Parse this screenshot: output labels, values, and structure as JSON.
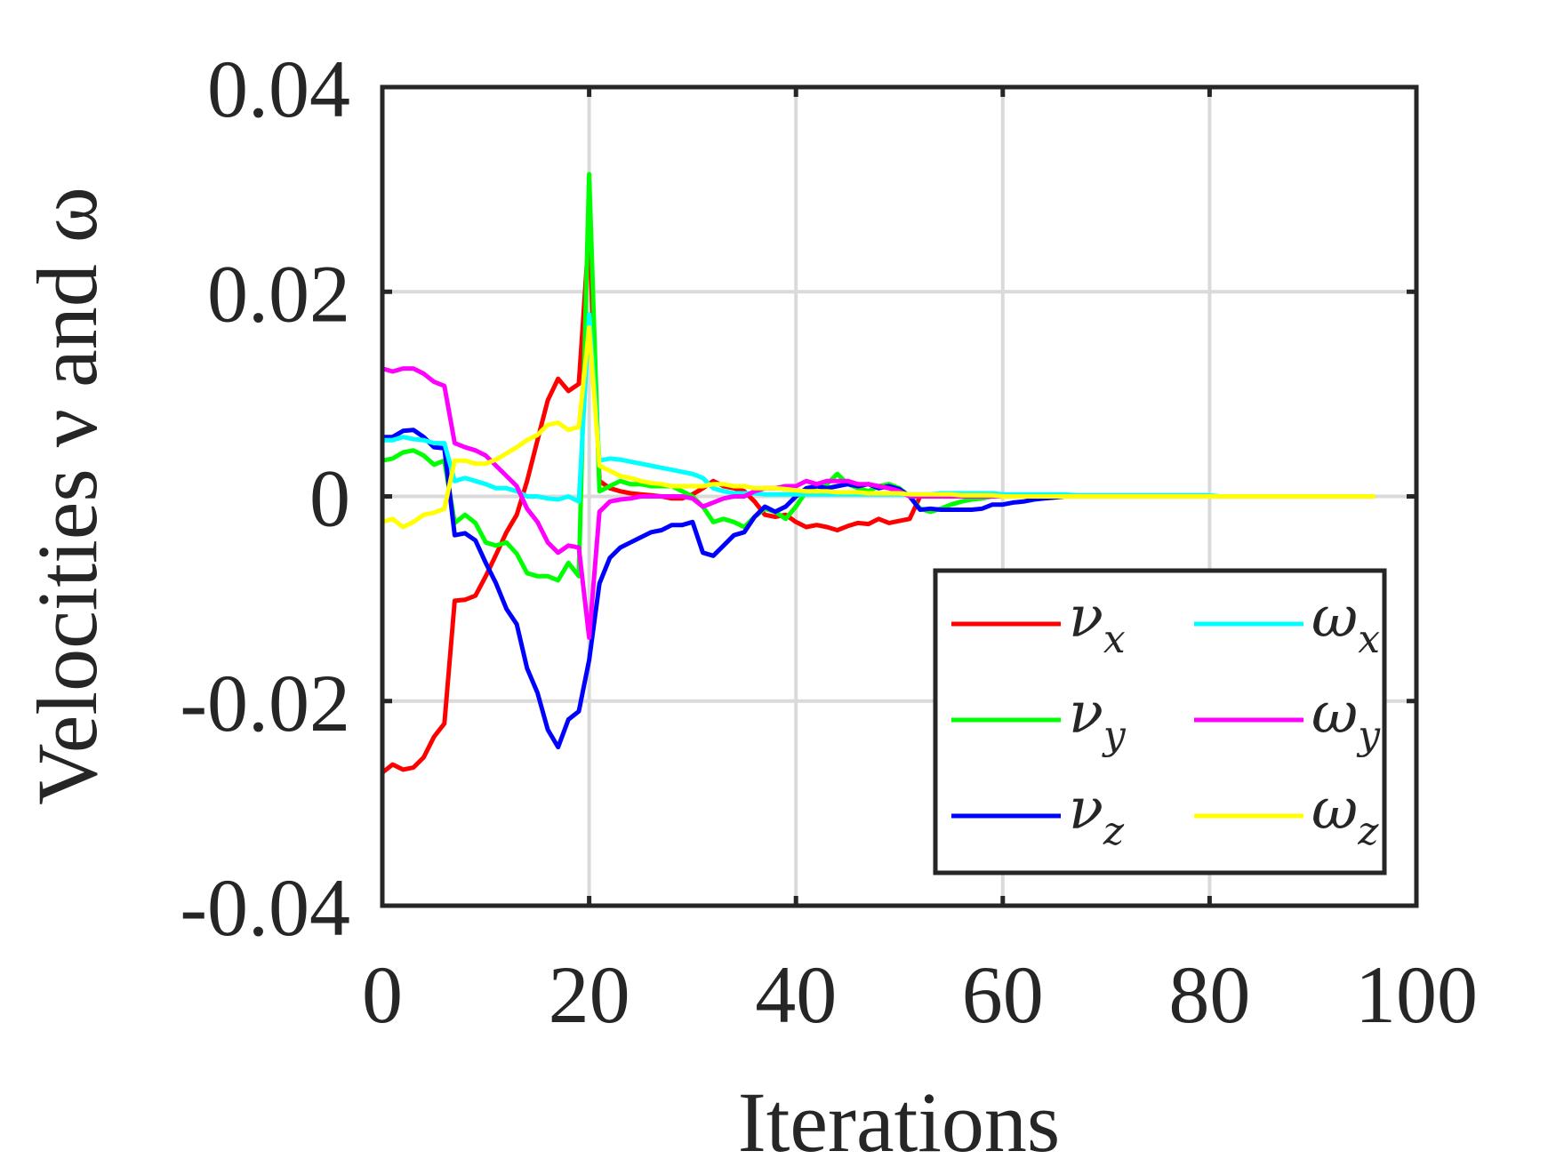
{
  "chart_data": {
    "type": "line",
    "xlabel": "Iterations",
    "ylabel": "Velocities ν and ω",
    "xlim": [
      0,
      100
    ],
    "ylim": [
      -0.04,
      0.04
    ],
    "xticks": [
      0,
      20,
      40,
      60,
      80,
      100
    ],
    "xtick_labels": [
      "0",
      "20",
      "40",
      "60",
      "80",
      "100"
    ],
    "yticks": [
      0.04,
      0.02,
      0,
      -0.02,
      -0.04
    ],
    "ytick_labels": [
      "0.04",
      "0.02",
      "0",
      "-0.02",
      "-0.04"
    ],
    "grid": true,
    "legend_position": "bottom-right",
    "x": [
      0,
      1,
      2,
      3,
      4,
      5,
      6,
      7,
      8,
      9,
      10,
      11,
      12,
      13,
      14,
      15,
      16,
      17,
      18,
      19,
      20,
      21,
      22,
      23,
      24,
      25,
      26,
      27,
      28,
      29,
      30,
      31,
      32,
      33,
      34,
      35,
      36,
      37,
      38,
      39,
      40,
      41,
      42,
      43,
      44,
      45,
      46,
      47,
      48,
      49,
      50,
      51,
      52,
      53,
      54,
      55,
      56,
      57,
      58,
      59,
      60,
      61,
      62,
      63,
      64,
      65,
      66,
      67,
      68,
      69,
      70,
      71,
      72,
      73,
      74,
      75,
      76,
      77,
      78,
      79,
      80,
      81,
      82,
      83,
      84,
      85,
      86,
      87,
      88,
      89,
      90,
      91,
      92,
      93,
      94,
      95,
      96
    ],
    "series": [
      {
        "name": "ν",
        "subscript": "x",
        "color": "#ff0000",
        "values": [
          -0.027,
          -0.0262,
          -0.0267,
          -0.0265,
          -0.0255,
          -0.0235,
          -0.0222,
          -0.0102,
          -0.0101,
          -0.0097,
          -0.0078,
          -0.0057,
          -0.0035,
          -0.0018,
          0.0015,
          0.0055,
          0.0094,
          0.0115,
          0.0103,
          0.011,
          0.026,
          0.0015,
          0.0008,
          0.0005,
          0.0003,
          0.0002,
          0.0001,
          0.0,
          -0.0002,
          -0.0002,
          0.0002,
          0.0008,
          0.0015,
          0.001,
          0.0008,
          0.0005,
          -0.0005,
          -0.0018,
          -0.002,
          -0.0018,
          -0.0025,
          -0.003,
          -0.0028,
          -0.003,
          -0.0033,
          -0.0029,
          -0.0026,
          -0.0027,
          -0.0022,
          -0.0026,
          -0.0024,
          -0.0022,
          0.0,
          0.0,
          0.0,
          0.0,
          0.0,
          0.0,
          0.0,
          0.0,
          0.0,
          0.0,
          0.0,
          0.0,
          0.0,
          0.0,
          0.0,
          0.0,
          0.0,
          0.0,
          0.0,
          0.0,
          0.0,
          0.0,
          0.0,
          0.0,
          0.0,
          0.0,
          0.0,
          0.0,
          0.0,
          0.0,
          0.0,
          0.0,
          0.0,
          0.0,
          0.0,
          0.0,
          0.0,
          0.0,
          0.0,
          0.0,
          0.0,
          0.0,
          0.0,
          0.0,
          0.0
        ]
      },
      {
        "name": "ν",
        "subscript": "y",
        "color": "#00ff00",
        "values": [
          0.0035,
          0.0037,
          0.0043,
          0.0045,
          0.004,
          0.0031,
          0.0035,
          -0.0026,
          -0.0018,
          -0.0026,
          -0.0045,
          -0.0048,
          -0.0045,
          -0.0056,
          -0.0075,
          -0.0078,
          -0.0078,
          -0.0082,
          -0.0065,
          -0.0078,
          0.0315,
          0.0005,
          0.001,
          0.0015,
          0.0012,
          0.0012,
          0.001,
          0.001,
          0.001,
          0.0005,
          0.0,
          -0.001,
          -0.0025,
          -0.0022,
          -0.0025,
          -0.003,
          -0.002,
          -0.0012,
          -0.0015,
          -0.0022,
          -0.001,
          0.0005,
          0.001,
          0.0012,
          0.0022,
          0.0012,
          0.0008,
          0.0005,
          0.001,
          0.0012,
          0.0008,
          0.0,
          -0.0012,
          -0.0015,
          -0.0012,
          -0.0008,
          -0.0005,
          -0.0003,
          -0.0002,
          0.0,
          0.0,
          0.0,
          0.0,
          0.0,
          0.0,
          0.0,
          0.0,
          0.0,
          0.0,
          0.0,
          0.0,
          0.0,
          0.0,
          0.0,
          0.0,
          0.0,
          0.0,
          0.0,
          0.0,
          0.0,
          0.0,
          0.0,
          0.0,
          0.0,
          0.0,
          0.0,
          0.0,
          0.0,
          0.0,
          0.0,
          0.0,
          0.0,
          0.0,
          0.0,
          0.0,
          0.0,
          0.0
        ]
      },
      {
        "name": "ν",
        "subscript": "z",
        "color": "#0000ff",
        "values": [
          0.0058,
          0.0058,
          0.0064,
          0.0065,
          0.0058,
          0.0048,
          0.0047,
          -0.0038,
          -0.0036,
          -0.0043,
          -0.0065,
          -0.0085,
          -0.011,
          -0.0125,
          -0.0168,
          -0.0192,
          -0.0228,
          -0.0245,
          -0.0218,
          -0.021,
          -0.016,
          -0.0085,
          -0.006,
          -0.005,
          -0.0045,
          -0.004,
          -0.0035,
          -0.0033,
          -0.0028,
          -0.0028,
          -0.0025,
          -0.0055,
          -0.0058,
          -0.0048,
          -0.0038,
          -0.0035,
          -0.002,
          -0.001,
          -0.0015,
          -0.001,
          0.0,
          0.0008,
          0.001,
          0.0008,
          0.001,
          0.0012,
          0.001,
          0.0012,
          0.0008,
          0.001,
          0.0007,
          0.0,
          -0.0013,
          -0.0012,
          -0.0013,
          -0.0013,
          -0.0013,
          -0.0013,
          -0.0012,
          -0.0008,
          -0.0008,
          -0.0006,
          -0.0005,
          -0.0003,
          -0.0002,
          -0.0001,
          0.0,
          0.0,
          0.0,
          0.0,
          0.0,
          0.0,
          0.0,
          0.0,
          0.0,
          0.0,
          0.0,
          0.0,
          0.0,
          0.0,
          0.0,
          0.0,
          0.0,
          0.0,
          0.0,
          0.0,
          0.0,
          0.0,
          0.0,
          0.0,
          0.0,
          0.0,
          0.0,
          0.0,
          0.0,
          0.0,
          0.0
        ]
      },
      {
        "name": "ω",
        "subscript": "x",
        "color": "#00ffff",
        "values": [
          0.0055,
          0.0055,
          0.0058,
          0.0056,
          0.0055,
          0.0052,
          0.0052,
          0.0015,
          0.0018,
          0.0015,
          0.0012,
          0.0008,
          0.0008,
          0.0005,
          0.0,
          0.0,
          -0.0002,
          -0.0003,
          0.0,
          -0.0005,
          0.0178,
          0.0035,
          0.0037,
          0.0036,
          0.0034,
          0.0032,
          0.003,
          0.0028,
          0.0026,
          0.0024,
          0.0022,
          0.0018,
          0.0008,
          0.0005,
          0.0003,
          0.0003,
          0.0003,
          0.0002,
          0.0002,
          0.0002,
          0.0002,
          0.0002,
          0.0002,
          0.0002,
          0.0002,
          0.0002,
          0.0002,
          0.0002,
          0.0002,
          0.0002,
          0.0002,
          0.0002,
          0.0002,
          0.0002,
          0.0003,
          0.0003,
          0.0003,
          0.0003,
          0.0003,
          0.0003,
          0.0002,
          0.0002,
          0.0002,
          0.0002,
          0.0002,
          0.0002,
          0.0002,
          0.0001,
          0.0001,
          0.0001,
          0.0001,
          0.0001,
          0.0001,
          0.0001,
          0.0001,
          0.0001,
          0.0001,
          0.0001,
          0.0001,
          0.0001,
          0.0001,
          0.0,
          0.0,
          0.0,
          0.0,
          0.0,
          0.0,
          0.0,
          0.0,
          0.0,
          0.0,
          0.0,
          0.0,
          0.0,
          0.0,
          0.0,
          0.0
        ]
      },
      {
        "name": "ω",
        "subscript": "y",
        "color": "#ff00ff",
        "values": [
          0.0125,
          0.0122,
          0.0125,
          0.0125,
          0.012,
          0.0112,
          0.0108,
          0.0052,
          0.0048,
          0.0045,
          0.004,
          0.003,
          0.002,
          0.001,
          -0.0012,
          -0.0025,
          -0.0045,
          -0.0055,
          -0.0048,
          -0.005,
          -0.0138,
          -0.0015,
          -0.0005,
          -0.0003,
          -0.0002,
          0.0,
          0.0,
          0.0,
          0.0,
          0.0,
          -0.0002,
          -0.001,
          -0.0006,
          -0.0002,
          0.0,
          0.0,
          0.0005,
          0.0008,
          0.0008,
          0.001,
          0.001,
          0.0015,
          0.0012,
          0.0015,
          0.0015,
          0.0015,
          0.0012,
          0.0012,
          0.001,
          0.0008,
          0.0005,
          0.0,
          0.0,
          0.0,
          0.0,
          0.0,
          0.0,
          0.0,
          0.0,
          0.0,
          0.0,
          0.0,
          0.0,
          0.0,
          0.0,
          0.0,
          0.0,
          0.0,
          0.0,
          0.0,
          0.0,
          0.0,
          0.0,
          0.0,
          0.0,
          0.0,
          0.0,
          0.0,
          0.0,
          0.0,
          0.0,
          0.0,
          0.0,
          0.0,
          0.0,
          0.0,
          0.0,
          0.0,
          0.0,
          0.0,
          0.0,
          0.0,
          0.0,
          0.0,
          0.0,
          0.0,
          0.0
        ]
      },
      {
        "name": "ω",
        "subscript": "z",
        "color": "#ffff00",
        "values": [
          -0.0025,
          -0.0022,
          -0.003,
          -0.0025,
          -0.0018,
          -0.0016,
          -0.0012,
          0.0035,
          0.0035,
          0.0032,
          0.0032,
          0.0036,
          0.0042,
          0.0048,
          0.0055,
          0.006,
          0.007,
          0.0072,
          0.0065,
          0.0068,
          0.0165,
          0.003,
          0.0025,
          0.002,
          0.0018,
          0.0015,
          0.0013,
          0.0012,
          0.001,
          0.001,
          0.001,
          0.001,
          0.0012,
          0.0012,
          0.001,
          0.001,
          0.0008,
          0.0008,
          0.0008,
          0.0007,
          0.0006,
          0.0005,
          0.0005,
          0.0005,
          0.0004,
          0.0004,
          0.0004,
          0.0003,
          0.0003,
          0.0003,
          0.0003,
          0.0002,
          0.0002,
          0.0002,
          0.0002,
          0.0002,
          0.0001,
          0.0001,
          0.0001,
          0.0001,
          0.0,
          0.0,
          0.0,
          0.0,
          0.0,
          0.0,
          0.0,
          0.0,
          0.0,
          0.0,
          0.0,
          0.0,
          0.0,
          0.0,
          0.0,
          0.0,
          0.0,
          0.0,
          0.0,
          0.0,
          0.0,
          0.0,
          0.0,
          0.0,
          0.0,
          0.0,
          0.0,
          0.0,
          0.0,
          0.0,
          0.0,
          0.0,
          0.0,
          0.0,
          0.0,
          0.0,
          0.0
        ]
      }
    ]
  }
}
